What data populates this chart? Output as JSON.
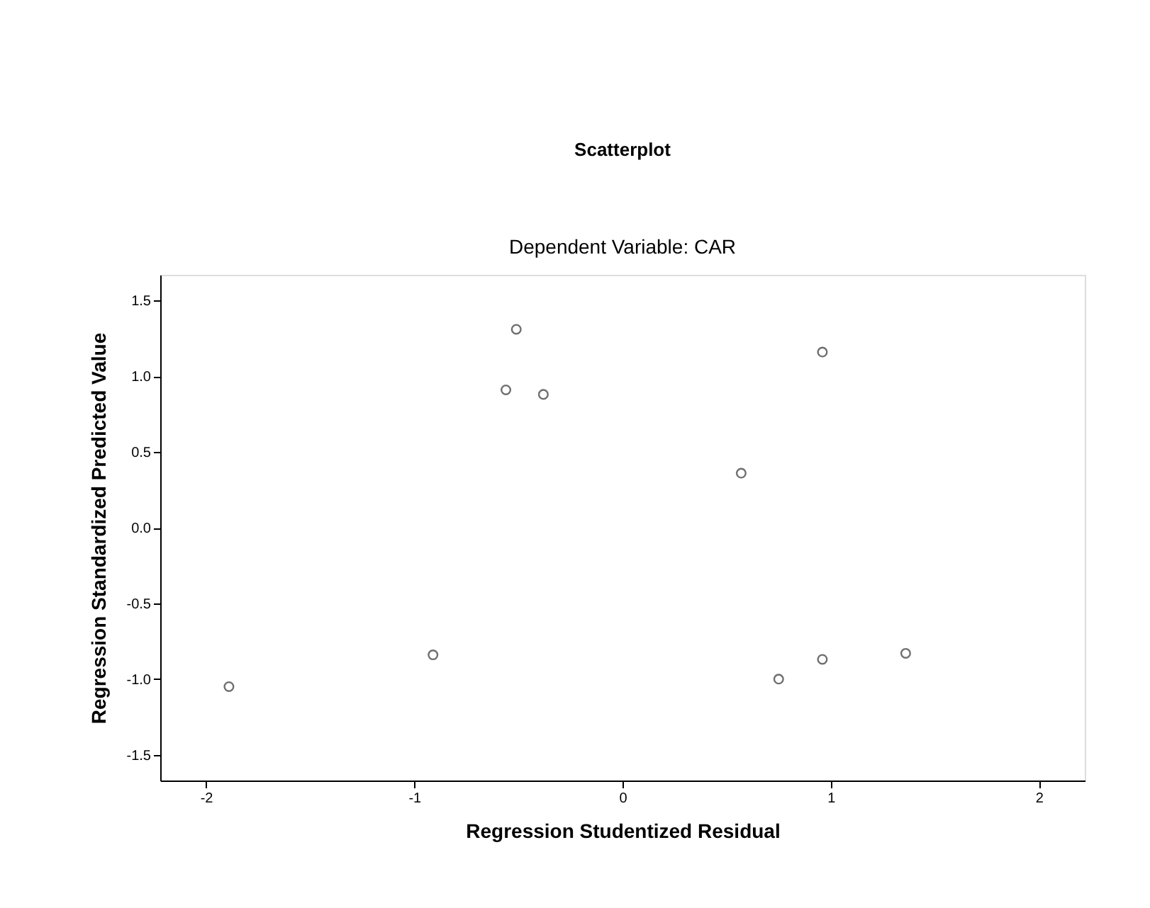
{
  "chart_data": {
    "type": "scatter",
    "title": "Scatterplot",
    "subtitle": "Dependent Variable: CAR",
    "xlabel": "Regression Studentized Residual",
    "ylabel": "Regression Standardized Predicted Value",
    "x": [
      -1.89,
      -0.91,
      -0.56,
      -0.51,
      -0.38,
      0.57,
      0.96,
      0.75,
      0.96,
      1.36
    ],
    "values": [
      -1.05,
      -0.84,
      0.91,
      1.31,
      0.88,
      0.36,
      1.16,
      -1.0,
      -0.87,
      -0.83
    ],
    "color": "#333333",
    "marker": "circle",
    "xlim": [
      -2.22,
      2.22
    ],
    "xticks": [
      -2,
      -1,
      0,
      1,
      2
    ],
    "ylim": [
      -1.67,
      1.67
    ],
    "yticks": [
      {
        "value": -1.5,
        "label": "-1.5"
      },
      {
        "value": -1.0,
        "label": "-1.0"
      },
      {
        "value": -0.5,
        "label": "-0.5"
      },
      {
        "value": 0,
        "label": "0.0"
      },
      {
        "value": 0.5,
        "label": "0.5"
      },
      {
        "value": 1.0,
        "label": "1.0"
      },
      {
        "value": 1.5,
        "label": "1.5"
      }
    ],
    "grid": false
  }
}
